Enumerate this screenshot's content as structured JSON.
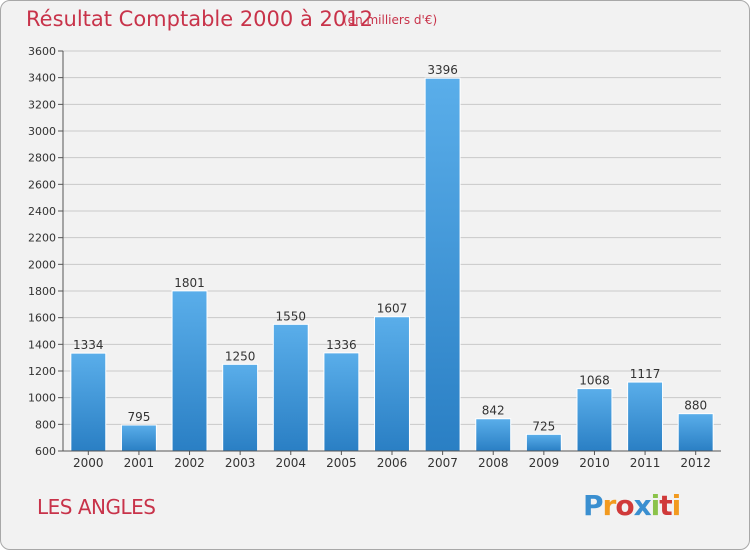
{
  "header": {
    "title": "Résultat Comptable 2000 à 2012",
    "subtitle": "(en milliers d'€)"
  },
  "footer": {
    "commune": "LES ANGLES",
    "logo_text": "Proxiti"
  },
  "colors": {
    "title": "#c8334a",
    "bar_top": "#5aaeea",
    "bar_bottom": "#2a7fc4",
    "grid": "#c9c9c9"
  },
  "chart_data": {
    "type": "bar",
    "categories": [
      "2000",
      "2001",
      "2002",
      "2003",
      "2004",
      "2005",
      "2006",
      "2007",
      "2008",
      "2009",
      "2010",
      "2011",
      "2012"
    ],
    "values": [
      1334,
      795,
      1801,
      1250,
      1550,
      1336,
      1607,
      3396,
      842,
      725,
      1068,
      1117,
      880
    ],
    "title": "Résultat Comptable 2000 à 2012",
    "xlabel": "",
    "ylabel": "",
    "ylim": [
      600,
      3600
    ],
    "yticks": [
      600,
      800,
      1000,
      1200,
      1400,
      1600,
      1800,
      2000,
      2200,
      2400,
      2600,
      2800,
      3000,
      3200,
      3400,
      3600
    ],
    "grid": true,
    "data_labels": true
  }
}
